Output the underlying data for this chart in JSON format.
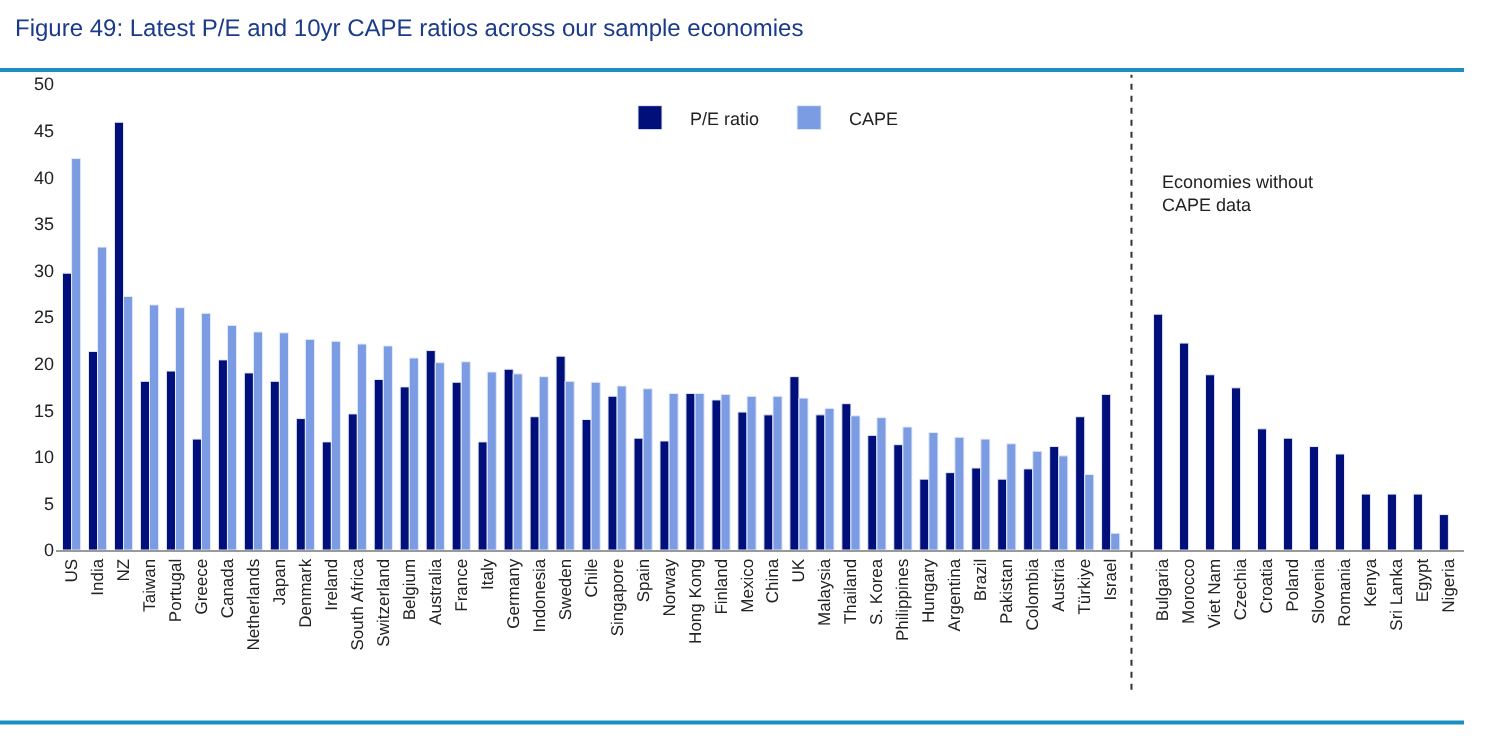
{
  "chart_data": {
    "type": "bar",
    "title": "Figure 49: Latest P/E and 10yr CAPE ratios across our sample economies",
    "categories": [
      "US",
      "India",
      "NZ",
      "Taiwan",
      "Portugal",
      "Greece",
      "Canada",
      "Netherlands",
      "Japan",
      "Denmark",
      "Ireland",
      "South Africa",
      "Switzerland",
      "Belgium",
      "Australia",
      "France",
      "Italy",
      "Germany",
      "Indonesia",
      "Sweden",
      "Chile",
      "Singapore",
      "Spain",
      "Norway",
      "Hong Kong",
      "Finland",
      "Mexico",
      "China",
      "UK",
      "Malaysia",
      "Thailand",
      "S. Korea",
      "Philippines",
      "Hungary",
      "Argentina",
      "Brazil",
      "Pakistan",
      "Colombia",
      "Austria",
      "Türkiye",
      "Israel",
      null,
      "Bulgaria",
      "Morocco",
      "Viet Nam",
      "Czechia",
      "Croatia",
      "Poland",
      "Slovenia",
      "Romania",
      "Kenya",
      "Sri Lanka",
      "Egypt",
      "Nigeria"
    ],
    "series": [
      {
        "name": "P/E ratio",
        "color": "#000f7a",
        "values": [
          29.7,
          21.3,
          45.9,
          18.1,
          19.2,
          11.9,
          20.4,
          19.0,
          18.1,
          14.1,
          11.6,
          14.6,
          18.3,
          17.5,
          21.4,
          18.0,
          11.6,
          19.4,
          14.3,
          20.8,
          14.0,
          16.5,
          12.0,
          11.7,
          16.8,
          16.1,
          14.8,
          14.5,
          18.6,
          14.5,
          15.7,
          12.3,
          11.3,
          7.6,
          8.3,
          8.8,
          7.6,
          8.7,
          11.1,
          14.3,
          16.7,
          null,
          25.3,
          22.2,
          18.8,
          17.4,
          13.0,
          12.0,
          11.1,
          10.3,
          6.0,
          6.0,
          6.0,
          3.8
        ]
      },
      {
        "name": "CAPE",
        "color": "#7b9be3",
        "values": [
          42.0,
          32.5,
          27.2,
          26.3,
          26.0,
          25.4,
          24.1,
          23.4,
          23.3,
          22.6,
          22.4,
          22.1,
          21.9,
          20.6,
          20.1,
          20.2,
          19.1,
          18.9,
          18.6,
          18.1,
          18.0,
          17.6,
          17.3,
          16.8,
          16.8,
          16.7,
          16.5,
          16.5,
          16.3,
          15.2,
          14.4,
          14.2,
          13.2,
          12.6,
          12.1,
          11.9,
          11.4,
          10.6,
          10.1,
          8.1,
          1.8,
          null,
          null,
          null,
          null,
          null,
          null,
          null,
          null,
          null,
          null,
          null,
          null,
          null
        ]
      }
    ],
    "ylim": [
      0,
      50
    ],
    "yticks": [
      0,
      5,
      10,
      15,
      20,
      25,
      30,
      35,
      40,
      45,
      50
    ],
    "legend": "top",
    "annotations": [
      "Economies without\nCAPE data"
    ]
  }
}
